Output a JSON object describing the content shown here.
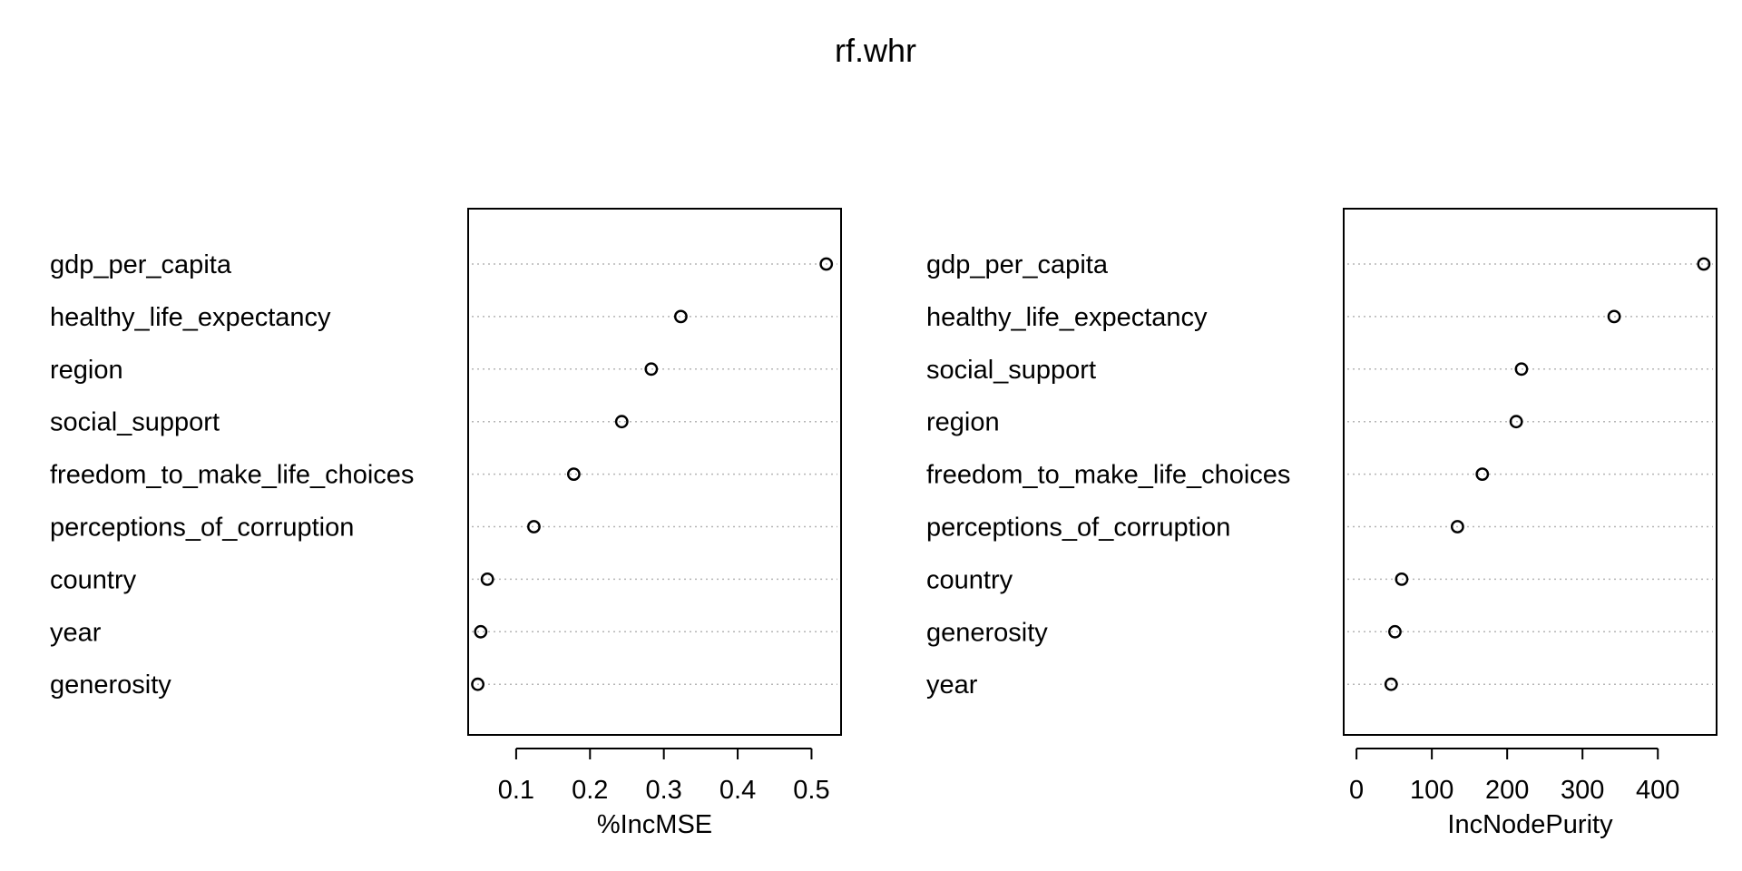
{
  "chart_data": {
    "title": "rf.whr",
    "type": "scatter",
    "panels": [
      {
        "xlabel": "%IncMSE",
        "ticks": [
          0.1,
          0.2,
          0.3,
          0.4,
          0.5
        ],
        "tick_labels": [
          "0.1",
          "0.2",
          "0.3",
          "0.4",
          "0.5"
        ],
        "xlim": [
          0.035,
          0.54
        ],
        "grid": true,
        "categories": [
          "gdp_per_capita",
          "healthy_life_expectancy",
          "region",
          "social_support",
          "freedom_to_make_life_choices",
          "perceptions_of_corruption",
          "country",
          "year",
          "generosity"
        ],
        "values": [
          0.52,
          0.323,
          0.283,
          0.243,
          0.178,
          0.124,
          0.061,
          0.052,
          0.048
        ]
      },
      {
        "xlabel": "IncNodePurity",
        "ticks": [
          0,
          100,
          200,
          300,
          400
        ],
        "tick_labels": [
          "0",
          "100",
          "200",
          "300",
          "400"
        ],
        "xlim": [
          -17,
          478
        ],
        "grid": true,
        "categories": [
          "gdp_per_capita",
          "healthy_life_expectancy",
          "social_support",
          "region",
          "freedom_to_make_life_choices",
          "perceptions_of_corruption",
          "country",
          "generosity",
          "year"
        ],
        "values": [
          461,
          342,
          219,
          212,
          167,
          134,
          60,
          51,
          46
        ]
      }
    ]
  }
}
